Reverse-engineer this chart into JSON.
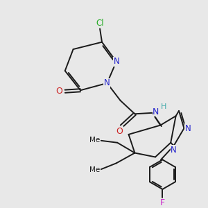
{
  "background_color": "#e8e8e8",
  "bond_color": "#1a1a1a",
  "N_color": "#2222cc",
  "O_color": "#cc2222",
  "Cl_color": "#22aa22",
  "F_color": "#cc22cc",
  "H_color": "#44aaaa",
  "figsize": [
    3.0,
    3.0
  ],
  "dpi": 100,
  "xlim": [
    0,
    10
  ],
  "ylim": [
    0,
    10
  ]
}
